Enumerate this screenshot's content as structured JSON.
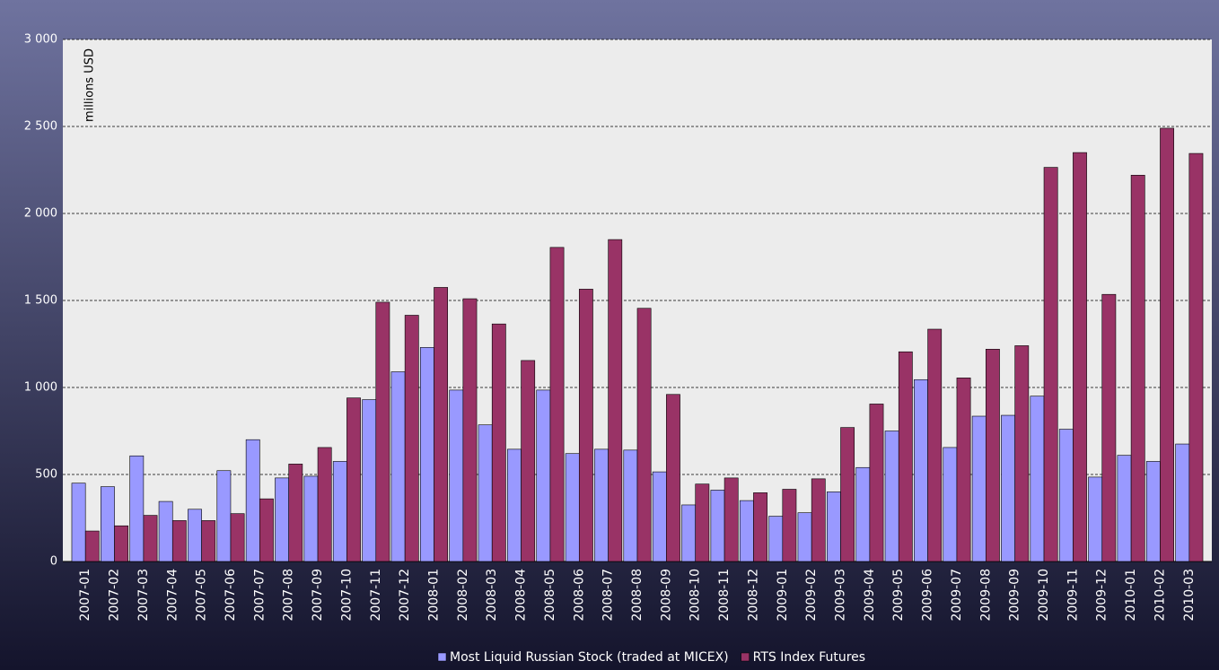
{
  "chart_data": {
    "type": "bar",
    "y_label": "millions USD",
    "categories": [
      "2007-01",
      "2007-02",
      "2007-03",
      "2007-04",
      "2007-05",
      "2007-06",
      "2007-07",
      "2007-08",
      "2007-09",
      "2007-10",
      "2007-11",
      "2007-12",
      "2008-01",
      "2008-02",
      "2008-03",
      "2008-04",
      "2008-05",
      "2008-06",
      "2008-07",
      "2008-08",
      "2008-09",
      "2008-10",
      "2008-11",
      "2008-12",
      "2009-01",
      "2009-02",
      "2009-03",
      "2009-04",
      "2009-05",
      "2009-06",
      "2009-07",
      "2009-08",
      "2009-09",
      "2009-10",
      "2009-11",
      "2009-12",
      "2010-01",
      "2010-02",
      "2010-03"
    ],
    "series": [
      {
        "name": "Most Liquid Russian Stock (traded at MICEX)",
        "color": "#9999ff",
        "values": [
          450,
          430,
          607,
          345,
          300,
          522,
          700,
          480,
          490,
          575,
          930,
          1090,
          1230,
          985,
          785,
          645,
          985,
          620,
          645,
          640,
          515,
          325,
          410,
          350,
          260,
          280,
          400,
          540,
          750,
          1045,
          655,
          835,
          840,
          950,
          760,
          485,
          610,
          575,
          675
        ]
      },
      {
        "name": "RTS Index Futures",
        "color": "#993366",
        "values": [
          175,
          205,
          265,
          235,
          235,
          275,
          360,
          560,
          655,
          940,
          1490,
          1415,
          1575,
          1510,
          1365,
          1155,
          1805,
          1565,
          1850,
          1455,
          960,
          445,
          480,
          395,
          415,
          475,
          770,
          905,
          1205,
          1335,
          1055,
          1220,
          1240,
          2265,
          2350,
          1535,
          2220,
          2490,
          2345
        ]
      }
    ],
    "ylim": [
      0,
      3000
    ],
    "yticks": [
      0,
      500,
      {
        "value": 1000,
        "label": "1 000"
      },
      {
        "value": 1500,
        "label": "1 500"
      },
      {
        "value": 2000,
        "label": "2 000"
      },
      {
        "value": 2500,
        "label": "2 500"
      },
      {
        "value": 3000,
        "label": "3 000"
      }
    ],
    "grid": true
  }
}
